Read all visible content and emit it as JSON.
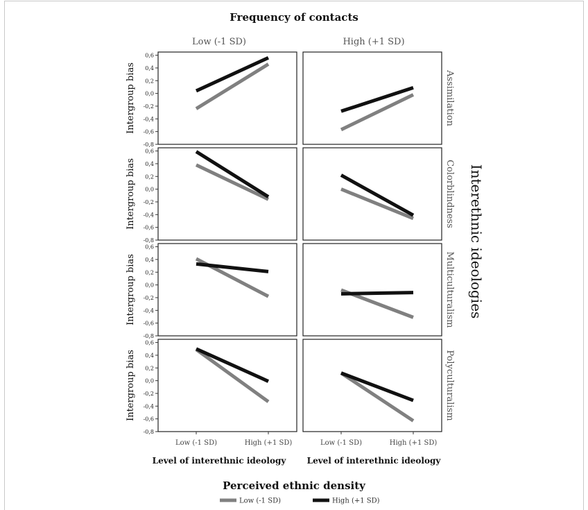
{
  "chart_data": {
    "type": "line",
    "title": "Frequency of contacts",
    "column_titles": [
      "Low (-1 SD)",
      "High (+1 SD)"
    ],
    "row_labels": [
      "Assimilation",
      "Colorblindness",
      "Multiculturalism",
      "Polyculturalism"
    ],
    "side_title": "Interethnic ideologies",
    "ylabel": "Intergroup bias",
    "xlabel": "Level of interethnic ideology",
    "categories": [
      "Low (-1 SD)",
      "High (+1 SD)"
    ],
    "ylim": [
      -0.8,
      0.65
    ],
    "yticks": [
      "-0,8",
      "-0,6",
      "-0,4",
      "-0,2",
      "0,0",
      "0,2",
      "0,4",
      "0,6"
    ],
    "legend": {
      "title": "Perceived ethnic density",
      "placement": "bottom",
      "entries": [
        "Low (-1 SD)",
        "High (+1 SD)"
      ]
    },
    "colors": {
      "low": "#808080",
      "high": "#111111"
    },
    "grid": false,
    "panels": [
      {
        "row": "Assimilation",
        "column": "Low (-1 SD)",
        "series": [
          {
            "name": "Low (-1 SD)",
            "values": [
              -0.24,
              0.46
            ]
          },
          {
            "name": "High (+1 SD)",
            "values": [
              0.04,
              0.56
            ]
          }
        ]
      },
      {
        "row": "Assimilation",
        "column": "High (+1 SD)",
        "series": [
          {
            "name": "Low (-1 SD)",
            "values": [
              -0.57,
              -0.02
            ]
          },
          {
            "name": "High (+1 SD)",
            "values": [
              -0.28,
              0.09
            ]
          }
        ]
      },
      {
        "row": "Colorblindness",
        "column": "Low (-1 SD)",
        "series": [
          {
            "name": "Low (-1 SD)",
            "values": [
              0.38,
              -0.16
            ]
          },
          {
            "name": "High (+1 SD)",
            "values": [
              0.59,
              -0.12
            ]
          }
        ]
      },
      {
        "row": "Colorblindness",
        "column": "High (+1 SD)",
        "series": [
          {
            "name": "Low (-1 SD)",
            "values": [
              0.0,
              -0.46
            ]
          },
          {
            "name": "High (+1 SD)",
            "values": [
              0.22,
              -0.41
            ]
          }
        ]
      },
      {
        "row": "Multiculturalism",
        "column": "Low (-1 SD)",
        "series": [
          {
            "name": "Low (-1 SD)",
            "values": [
              0.41,
              -0.18
            ]
          },
          {
            "name": "High (+1 SD)",
            "values": [
              0.33,
              0.21
            ]
          }
        ]
      },
      {
        "row": "Multiculturalism",
        "column": "High (+1 SD)",
        "series": [
          {
            "name": "Low (-1 SD)",
            "values": [
              -0.08,
              -0.51
            ]
          },
          {
            "name": "High (+1 SD)",
            "values": [
              -0.14,
              -0.12
            ]
          }
        ]
      },
      {
        "row": "Polyculturalism",
        "column": "Low (-1 SD)",
        "series": [
          {
            "name": "Low (-1 SD)",
            "values": [
              0.49,
              -0.33
            ]
          },
          {
            "name": "High (+1 SD)",
            "values": [
              0.5,
              -0.01
            ]
          }
        ]
      },
      {
        "row": "Polyculturalism",
        "column": "High (+1 SD)",
        "series": [
          {
            "name": "Low (-1 SD)",
            "values": [
              0.12,
              -0.63
            ]
          },
          {
            "name": "High (+1 SD)",
            "values": [
              0.12,
              -0.31
            ]
          }
        ]
      }
    ]
  }
}
